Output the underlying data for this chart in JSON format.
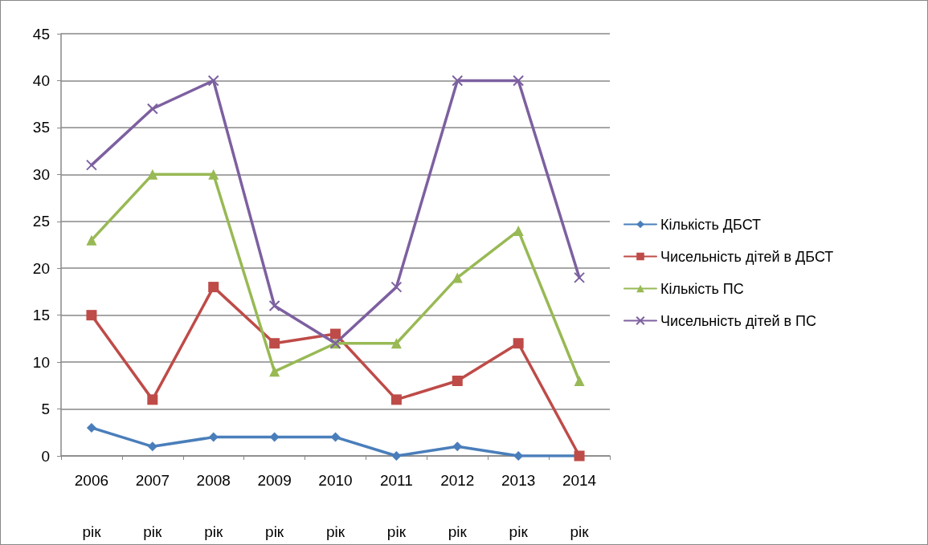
{
  "chart_data": {
    "type": "line",
    "categories": [
      "2006 рік",
      "2007 рік",
      "2008 рік",
      "2009 рік",
      "2010 рік",
      "2011 рік",
      "2012 рік",
      "2013 рік",
      "2014 рік"
    ],
    "series": [
      {
        "name": "Кількість ДБСТ",
        "color": "#4a7ebb",
        "marker": "diamond",
        "values": [
          3,
          1,
          2,
          2,
          2,
          0,
          1,
          0,
          0
        ]
      },
      {
        "name": "Чисельність дітей в ДБСТ",
        "color": "#be4b48",
        "marker": "square",
        "values": [
          15,
          6,
          18,
          12,
          13,
          6,
          8,
          12,
          0
        ]
      },
      {
        "name": "Кількість ПС",
        "color": "#98b954",
        "marker": "triangle",
        "values": [
          23,
          30,
          30,
          9,
          12,
          12,
          19,
          24,
          8
        ]
      },
      {
        "name": "Чисельність дітей в ПС",
        "color": "#7d60a0",
        "marker": "cross",
        "values": [
          31,
          37,
          40,
          16,
          12,
          18,
          40,
          40,
          19
        ]
      }
    ],
    "ylim": [
      0,
      45
    ],
    "yticks": [
      0,
      5,
      10,
      15,
      20,
      25,
      30,
      35,
      40,
      45
    ],
    "grid": "y",
    "legend": "right",
    "line_style": "solid"
  }
}
